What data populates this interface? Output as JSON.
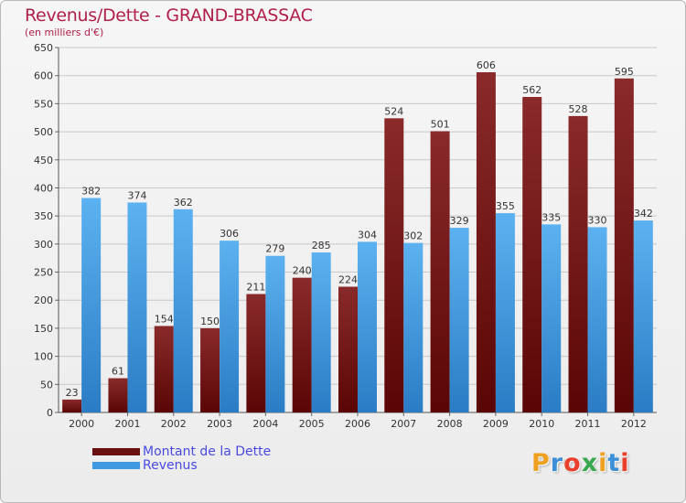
{
  "header": {
    "title": "Revenus/Dette - GRAND-BRASSAC",
    "subtitle": "(en milliers d'€)"
  },
  "chart_data": {
    "type": "bar",
    "title": "Revenus/Dette - GRAND-BRASSAC",
    "ylabel": "(en milliers d'€)",
    "xlabel": "",
    "ylim": [
      0,
      650
    ],
    "yticks": [
      0,
      50,
      100,
      150,
      200,
      250,
      300,
      350,
      400,
      450,
      500,
      550,
      600,
      650
    ],
    "grid": true,
    "legend_position": "bottom-left",
    "categories": [
      "2000",
      "2001",
      "2002",
      "2003",
      "2004",
      "2005",
      "2006",
      "2007",
      "2008",
      "2009",
      "2010",
      "2011",
      "2012"
    ],
    "series": [
      {
        "name": "Montant de la Dette",
        "color": "#7d1a1a",
        "values": [
          23,
          61,
          154,
          150,
          211,
          240,
          224,
          524,
          501,
          606,
          562,
          528,
          595
        ]
      },
      {
        "name": "Revenus",
        "color": "#3d9ae2",
        "values": [
          382,
          374,
          362,
          306,
          279,
          285,
          304,
          302,
          329,
          355,
          335,
          330,
          342
        ]
      }
    ]
  },
  "legend": {
    "items": [
      {
        "label": "Montant de la Dette",
        "color": "#6a0f0f"
      },
      {
        "label": "Revenus",
        "color": "#3d9ae2"
      }
    ]
  },
  "logo": {
    "letters": [
      "P",
      "r",
      "o",
      "x",
      "i",
      "t",
      "i"
    ],
    "colors": [
      "#f0a020",
      "#3a8fd8",
      "#e8402a",
      "#3aa850",
      "#f0a020",
      "#3a8fd8",
      "#e8402a"
    ]
  }
}
